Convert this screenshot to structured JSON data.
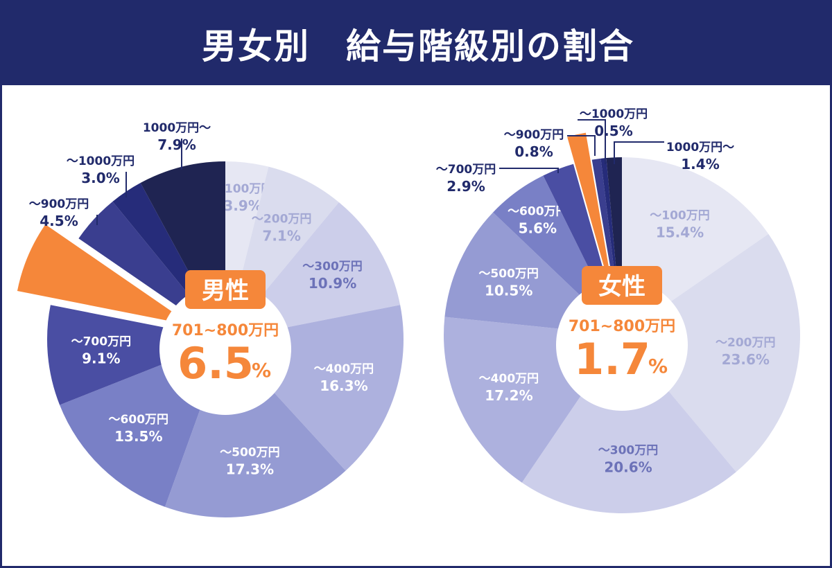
{
  "page_title": "男女別　給与階級別の割合",
  "colors": {
    "banner": "#212a6b",
    "highlight": "#f5873a",
    "label_dark": "#212a6b",
    "white": "#ffffff"
  },
  "chart_data": [
    {
      "type": "pie",
      "label": "男性",
      "highlight_category": "701~800万円",
      "highlight_value": "6.5",
      "highlight_unit": "%",
      "slices": [
        {
          "category": "~100万円",
          "value": 3.9,
          "label_name": "〜100万円",
          "label_value": "3.9%",
          "color": "#e6e7f3",
          "text_color": "#a3a8d4"
        },
        {
          "category": "~200万円",
          "value": 7.1,
          "label_name": "〜200万円",
          "label_value": "7.1%",
          "color": "#dadcee",
          "text_color": "#a3a8d4"
        },
        {
          "category": "~300万円",
          "value": 10.9,
          "label_name": "〜300万円",
          "label_value": "10.9%",
          "color": "#ccceea",
          "text_color": "#6c72b8"
        },
        {
          "category": "~400万円",
          "value": 16.3,
          "label_name": "〜400万円",
          "label_value": "16.3%",
          "color": "#adb1de",
          "text_color": "#ffffff"
        },
        {
          "category": "~500万円",
          "value": 17.3,
          "label_name": "〜500万円",
          "label_value": "17.3%",
          "color": "#959bd3",
          "text_color": "#ffffff"
        },
        {
          "category": "~600万円",
          "value": 13.5,
          "label_name": "〜600万円",
          "label_value": "13.5%",
          "color": "#7980c6",
          "text_color": "#ffffff"
        },
        {
          "category": "~700万円",
          "value": 9.1,
          "label_name": "〜700万円",
          "label_value": "9.1%",
          "color": "#4a4ea3",
          "text_color": "#ffffff"
        },
        {
          "category": "~800万円",
          "value": 6.5,
          "label_name": "",
          "label_value": "",
          "color": "#f5873a",
          "text_color": "#ffffff",
          "exploded": true
        },
        {
          "category": "~900万円",
          "value": 4.5,
          "label_name": "〜900万円",
          "label_value": "4.5%",
          "color": "#3a3e8f",
          "text_color": "#212a6b",
          "outside": true
        },
        {
          "category": "~1000万円",
          "value": 3.0,
          "label_name": "〜1000万円",
          "label_value": "3.0%",
          "color": "#262c7a",
          "text_color": "#212a6b",
          "outside": true
        },
        {
          "category": "1000万円~",
          "value": 7.9,
          "label_name": "1000万円〜",
          "label_value": "7.9%",
          "color": "#1f2452",
          "text_color": "#212a6b",
          "outside": true
        }
      ]
    },
    {
      "type": "pie",
      "label": "女性",
      "highlight_category": "701~800万円",
      "highlight_value": "1.7",
      "highlight_unit": "%",
      "slices": [
        {
          "category": "~100万円",
          "value": 15.4,
          "label_name": "〜100万円",
          "label_value": "15.4%",
          "color": "#e6e7f3",
          "text_color": "#a3a8d4"
        },
        {
          "category": "~200万円",
          "value": 23.6,
          "label_name": "〜200万円",
          "label_value": "23.6%",
          "color": "#dadcee",
          "text_color": "#a3a8d4"
        },
        {
          "category": "~300万円",
          "value": 20.6,
          "label_name": "〜300万円",
          "label_value": "20.6%",
          "color": "#ccceea",
          "text_color": "#6c72b8"
        },
        {
          "category": "~400万円",
          "value": 17.2,
          "label_name": "〜400万円",
          "label_value": "17.2%",
          "color": "#adb1de",
          "text_color": "#ffffff"
        },
        {
          "category": "~500万円",
          "value": 10.5,
          "label_name": "〜500万円",
          "label_value": "10.5%",
          "color": "#959bd3",
          "text_color": "#ffffff"
        },
        {
          "category": "~600万円",
          "value": 5.6,
          "label_name": "〜600万円",
          "label_value": "5.6%",
          "color": "#7980c6",
          "text_color": "#ffffff"
        },
        {
          "category": "~700万円",
          "value": 2.9,
          "label_name": "〜700万円",
          "label_value": "2.9%",
          "color": "#4a4ea3",
          "text_color": "#212a6b",
          "outside": true
        },
        {
          "category": "~800万円",
          "value": 1.7,
          "label_name": "",
          "label_value": "",
          "color": "#f5873a",
          "text_color": "#ffffff",
          "exploded": true
        },
        {
          "category": "~900万円",
          "value": 0.8,
          "label_name": "〜900万円",
          "label_value": "0.8%",
          "color": "#3a3e8f",
          "text_color": "#212a6b",
          "outside": true
        },
        {
          "category": "~1000万円",
          "value": 0.5,
          "label_name": "〜1000万円",
          "label_value": "0.5%",
          "color": "#262c7a",
          "text_color": "#212a6b",
          "outside": true
        },
        {
          "category": "1000万円~",
          "value": 1.4,
          "label_name": "1000万円〜",
          "label_value": "1.4%",
          "color": "#1f2452",
          "text_color": "#212a6b",
          "outside": true
        }
      ]
    }
  ]
}
